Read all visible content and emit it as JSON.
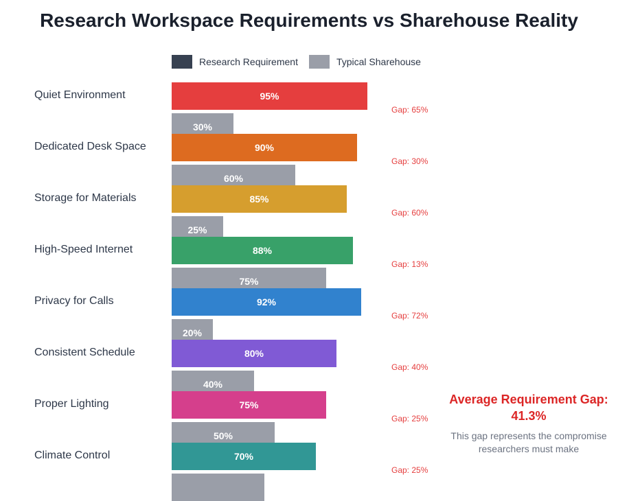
{
  "chart_data": {
    "type": "bar",
    "orientation": "horizontal",
    "title": "Research Workspace Requirements vs Sharehouse Reality",
    "legend": [
      {
        "name": "Research Requirement",
        "color": "#374151"
      },
      {
        "name": "Typical Sharehouse",
        "color": "#9a9ea8"
      }
    ],
    "legend_placement": "top",
    "categories": [
      "Quiet Environment",
      "Dedicated Desk Space",
      "Storage for Materials",
      "High-Speed Internet",
      "Privacy for Calls",
      "Consistent Schedule",
      "Proper Lighting",
      "Climate Control"
    ],
    "series": [
      {
        "name": "Research Requirement",
        "values": [
          95,
          90,
          85,
          88,
          92,
          80,
          75,
          70
        ],
        "labels": [
          "95%",
          "90%",
          "85%",
          "88%",
          "92%",
          "80%",
          "75%",
          "70%"
        ],
        "colors": [
          "#e53e3e",
          "#dd6b20",
          "#d69e2e",
          "#38a169",
          "#3182ce",
          "#805ad5",
          "#d53f8c",
          "#319795"
        ]
      },
      {
        "name": "Typical Sharehouse",
        "values": [
          30,
          60,
          25,
          75,
          20,
          40,
          50,
          45
        ],
        "labels": [
          "30%",
          "60%",
          "25%",
          "75%",
          "20%",
          "40%",
          "50%",
          ""
        ],
        "color": "#9a9ea8"
      }
    ],
    "gap_labels": [
      "Gap: 65%",
      "Gap: 30%",
      "Gap: 60%",
      "Gap: 13%",
      "Gap: 72%",
      "Gap: 40%",
      "Gap: 25%",
      "Gap: 25%"
    ],
    "xlim": [
      0,
      100
    ],
    "summary": "Average Requirement Gap: 41.3%",
    "summary_note": "This gap represents the compromise researchers must make"
  }
}
